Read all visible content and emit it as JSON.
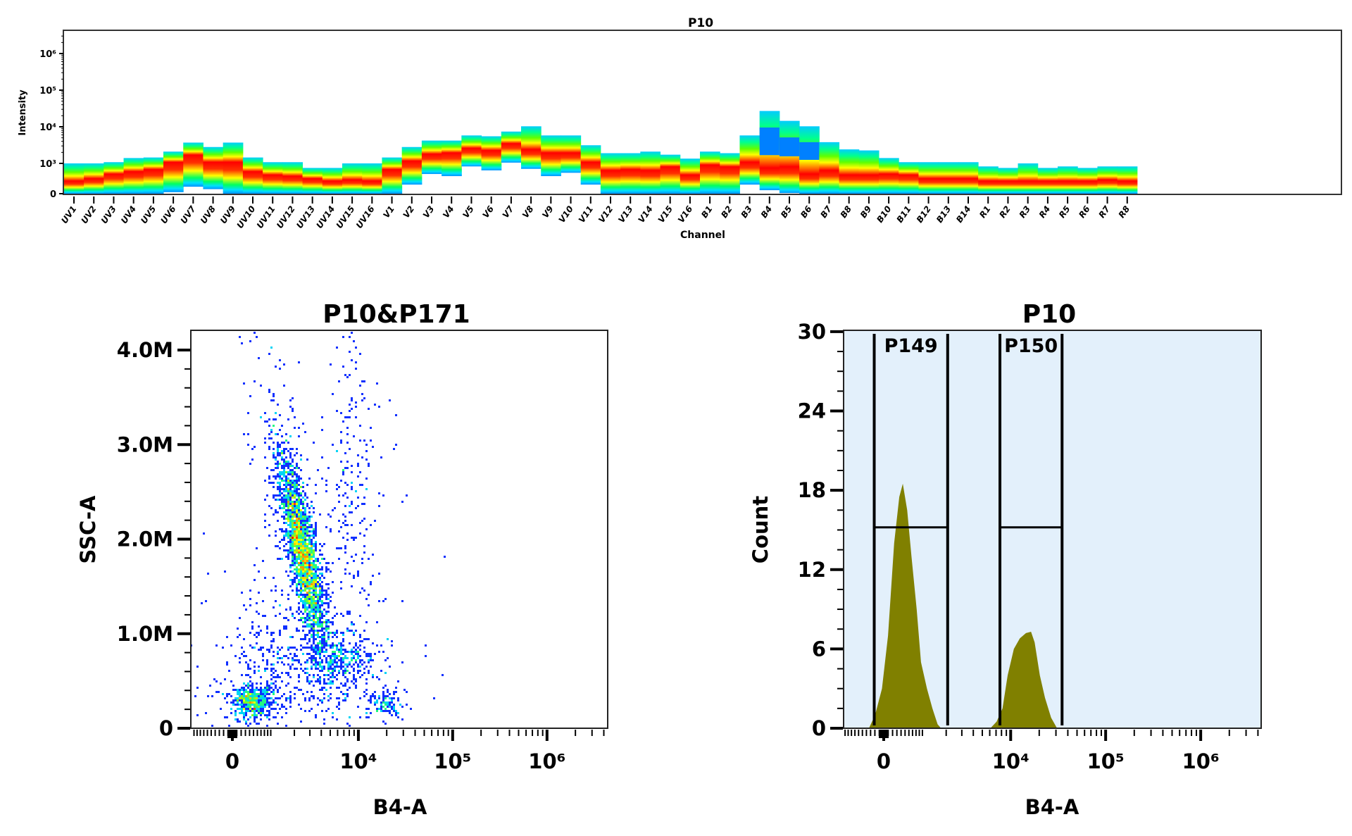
{
  "chart_data": [
    {
      "type": "heatmap",
      "title": "P10",
      "xlabel": "Channel",
      "ylabel": "Intensity",
      "y_scale": "biexponential",
      "y_ticks": [
        "0",
        "10³",
        "10⁴",
        "10⁵",
        "10⁶"
      ],
      "y_tick_values": [
        0,
        1000,
        10000,
        100000,
        1000000
      ],
      "colormap": [
        "#0030ff",
        "#00aaff",
        "#00ffff",
        "#00ff40",
        "#ffff00",
        "#ff8000",
        "#ff0000"
      ],
      "channels": [
        "UV1",
        "UV2",
        "UV3",
        "UV4",
        "UV5",
        "UV6",
        "UV7",
        "UV8",
        "UV9",
        "UV10",
        "UV11",
        "UV12",
        "UV13",
        "UV14",
        "UV15",
        "UV16",
        "V1",
        "V2",
        "V3",
        "V4",
        "V5",
        "V6",
        "V7",
        "V8",
        "V9",
        "V10",
        "V11",
        "V12",
        "V13",
        "V14",
        "V15",
        "V16",
        "B1",
        "B2",
        "B3",
        "B4",
        "B5",
        "B6",
        "B7",
        "B8",
        "B9",
        "B10",
        "B11",
        "B12",
        "B13",
        "B14",
        "R1",
        "R2",
        "R3",
        "R4",
        "R5",
        "R6",
        "R7",
        "R8"
      ],
      "max": [
        1000,
        1000,
        1080,
        1400,
        1450,
        2100,
        3700,
        2800,
        3700,
        1450,
        1080,
        1080,
        850,
        850,
        1000,
        1000,
        1450,
        2800,
        4200,
        4200,
        5800,
        5500,
        7400,
        10300,
        5800,
        5800,
        3130,
        1900,
        1900,
        2100,
        1730,
        1350,
        2100,
        1900,
        5800,
        27000,
        14500,
        10300,
        3800,
        2410,
        2260,
        1400,
        1080,
        1080,
        1080,
        1080,
        900,
        850,
        1000,
        850,
        900,
        850,
        900,
        900
      ],
      "min": [
        0,
        0,
        0,
        0,
        0,
        50,
        230,
        150,
        0,
        0,
        0,
        0,
        0,
        0,
        0,
        0,
        0,
        300,
        650,
        580,
        900,
        770,
        1050,
        820,
        580,
        690,
        300,
        0,
        0,
        0,
        0,
        0,
        0,
        0,
        300,
        115,
        20,
        0,
        0,
        0,
        0,
        0,
        0,
        0,
        0,
        0,
        0,
        0,
        0,
        0,
        0,
        0,
        0,
        0
      ],
      "peak": [
        420,
        500,
        650,
        730,
        800,
        1080,
        1700,
        1080,
        1080,
        730,
        620,
        580,
        500,
        420,
        460,
        420,
        800,
        1160,
        1800,
        1950,
        2600,
        2270,
        3500,
        2400,
        1950,
        1950,
        1080,
        770,
        800,
        770,
        890,
        620,
        950,
        890,
        1080,
        850,
        890,
        650,
        770,
        620,
        620,
        650,
        620,
        500,
        500,
        500,
        420,
        420,
        420,
        420,
        420,
        420,
        460,
        420
      ],
      "blue_band": {
        "B4": [
          1680,
          9550
        ],
        "B5": [
          1560,
          5120
        ],
        "B6": [
          1250,
          3800
        ]
      }
    },
    {
      "type": "scatter",
      "title": "P10&P171",
      "xlabel": "B4-A",
      "ylabel": "SSC-A",
      "x_scale": "biexponential",
      "x_ticks": [
        "0",
        "10⁴",
        "10⁵",
        "10⁶"
      ],
      "x_tick_values": [
        0,
        10000,
        100000,
        1000000
      ],
      "y_ticks": [
        "0",
        "1.0M",
        "2.0M",
        "3.0M",
        "4.0M"
      ],
      "y_tick_values": [
        0,
        1000000,
        2000000,
        3000000,
        4000000
      ],
      "ylim": [
        0,
        4200000
      ],
      "coloring": "density (jet)",
      "populations": [
        {
          "x": 2500,
          "y": 1850000
        },
        {
          "x": 440,
          "y": 280000
        },
        {
          "x": 7000,
          "y": 700000
        },
        {
          "x": 1500,
          "y": 700000
        },
        {
          "x": 19000,
          "y": 250000
        },
        {
          "x": 9000,
          "y": 2500000
        }
      ]
    },
    {
      "type": "area",
      "title": "P10",
      "xlabel": "B4-A",
      "ylabel": "Count",
      "x_scale": "biexponential",
      "x_ticks": [
        "0",
        "10⁴",
        "10⁵",
        "10⁶"
      ],
      "x_tick_values": [
        0,
        10000,
        100000,
        1000000
      ],
      "y_ticks": [
        "0",
        "6",
        "12",
        "18",
        "24",
        "30"
      ],
      "y_tick_values": [
        0,
        6,
        12,
        18,
        24,
        30
      ],
      "ylim": [
        0,
        30
      ],
      "fill_color": "#808000",
      "background": "#e3f0fb",
      "series": [
        {
          "x": [
            -338,
            -196,
            -39,
            97,
            236,
            358,
            444,
            555,
            670,
            820,
            954,
            1157,
            1361,
            1583,
            1741
          ],
          "y": [
            0,
            1,
            3,
            7,
            14,
            17.5,
            18.5,
            16.5,
            13,
            9,
            5,
            3,
            1.5,
            0.3,
            0
          ]
        },
        {
          "x": [
            6100,
            7100,
            8200,
            9300,
            10800,
            12500,
            14500,
            16400,
            17900,
            20300,
            23000,
            26700,
            30800
          ],
          "y": [
            0,
            0.5,
            1.5,
            4,
            6,
            6.8,
            7.2,
            7.3,
            6.5,
            4,
            2.3,
            0.8,
            0
          ]
        }
      ],
      "gates": [
        {
          "name": "P149",
          "x_range": [
            -215,
            2080
          ],
          "y": 15.2
        },
        {
          "name": "P150",
          "x_range": [
            7700,
            34800
          ],
          "y": 15.2
        }
      ]
    }
  ]
}
